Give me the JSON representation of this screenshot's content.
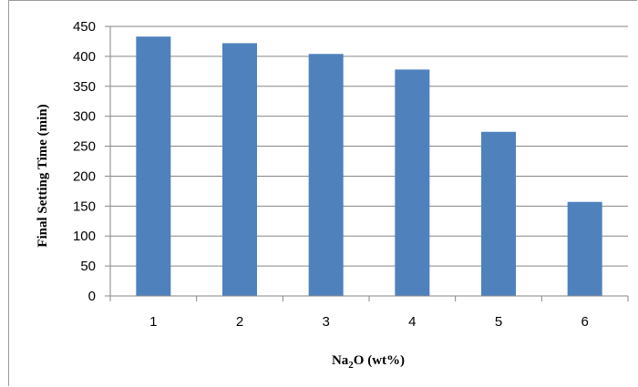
{
  "chart_data": {
    "type": "bar",
    "categories": [
      "1",
      "2",
      "3",
      "4",
      "5",
      "6"
    ],
    "values": [
      433,
      422,
      404,
      378,
      274,
      157
    ],
    "title": "",
    "xlabel": "Na2O (wt%)",
    "xlabel_parts": {
      "before": "Na",
      "sub": "2",
      "after": "O (wt%)"
    },
    "ylabel": "Final Setting Time (min)",
    "ylim": [
      0,
      450
    ],
    "yticks": [
      0,
      50,
      100,
      150,
      200,
      250,
      300,
      350,
      400,
      450
    ],
    "grid": true,
    "legend": "none",
    "bar_color": "#4f81bd",
    "grid_color": "#868686"
  }
}
